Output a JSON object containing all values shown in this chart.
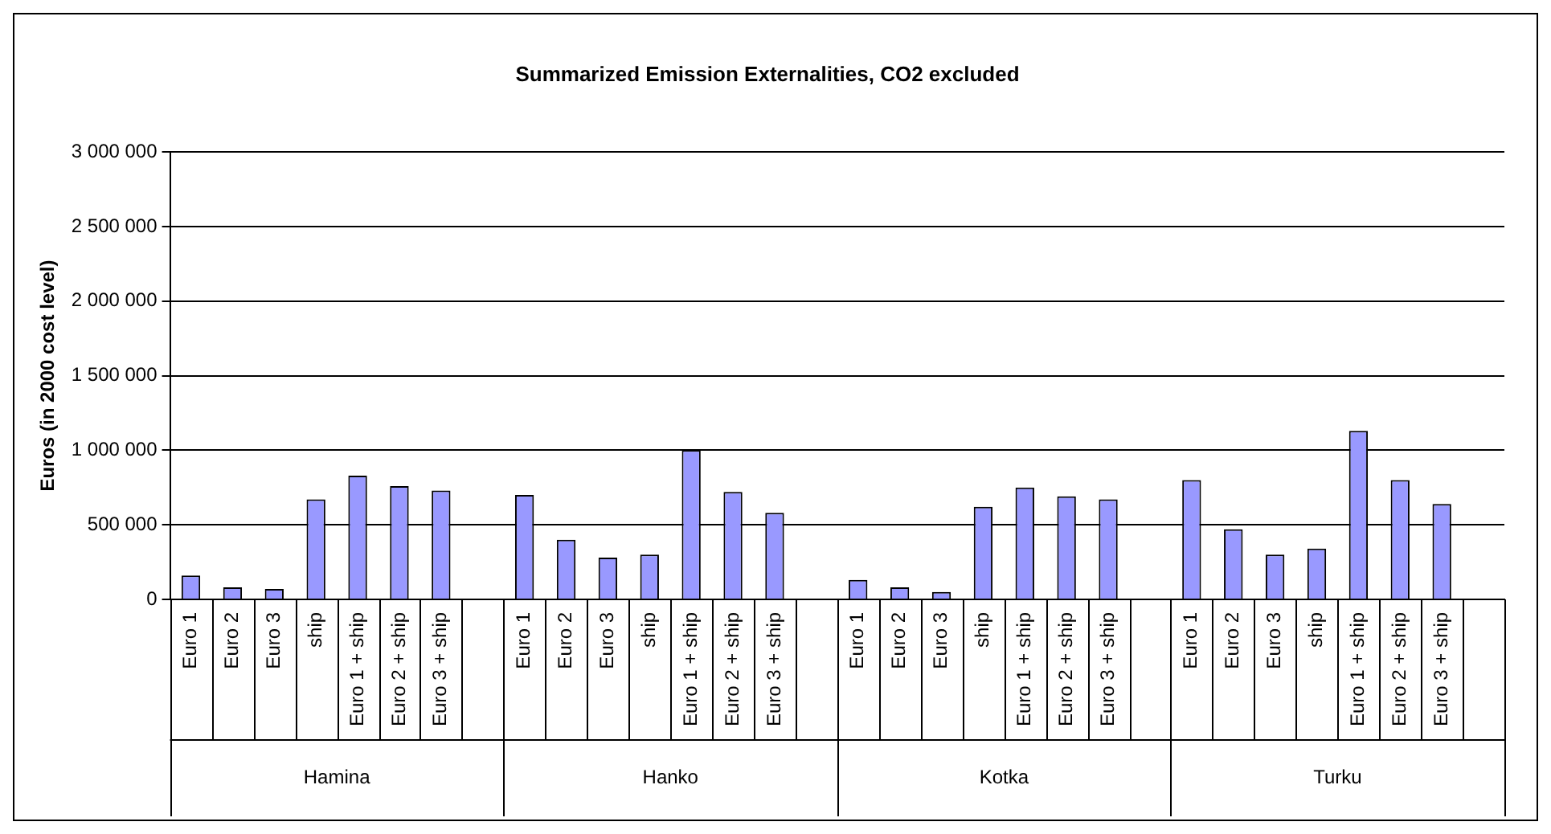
{
  "chart_data": {
    "type": "bar",
    "title": "Summarized Emission Externalities, CO2 excluded",
    "ylabel": "Euros (in 2000 cost level)",
    "categories": [
      "Euro 1",
      "Euro 2",
      "Euro 3",
      "ship",
      "Euro 1 + ship",
      "Euro 2 + ship",
      "Euro 3 + ship",
      null,
      "Euro 1",
      "Euro 2",
      "Euro 3",
      "ship",
      "Euro 1 + ship",
      "Euro 2 + ship",
      "Euro 3 + ship",
      null,
      "Euro 1",
      "Euro 2",
      "Euro 3",
      "ship",
      "Euro 1 + ship",
      "Euro 2 + ship",
      "Euro 3 + ship",
      null,
      "Euro 1",
      "Euro 2",
      "Euro 3",
      "ship",
      "Euro 1 + ship",
      "Euro 2 + ship",
      "Euro 3 + ship",
      null
    ],
    "values": [
      160000,
      80000,
      70000,
      670000,
      830000,
      760000,
      730000,
      null,
      700000,
      400000,
      280000,
      300000,
      1000000,
      720000,
      580000,
      null,
      130000,
      80000,
      50000,
      620000,
      750000,
      690000,
      670000,
      null,
      800000,
      470000,
      300000,
      340000,
      1130000,
      800000,
      640000,
      null
    ],
    "color": "#9999ff",
    "annotations": [
      "Hamina",
      "Hanko",
      "Kotka",
      "Turku"
    ],
    "ylim": [
      0,
      3000000
    ],
    "yticks": [
      {
        "value": 0,
        "label": "0"
      },
      {
        "value": 500000,
        "label": "500 000"
      },
      {
        "value": 1000000,
        "label": "1 000 000"
      },
      {
        "value": 1500000,
        "label": "1 500 000"
      },
      {
        "value": 2000000,
        "label": "2 000 000"
      },
      {
        "value": 2500000,
        "label": "2 500 000"
      },
      {
        "value": 3000000,
        "label": "3 000 000"
      }
    ],
    "grid": "y",
    "legend": false
  }
}
